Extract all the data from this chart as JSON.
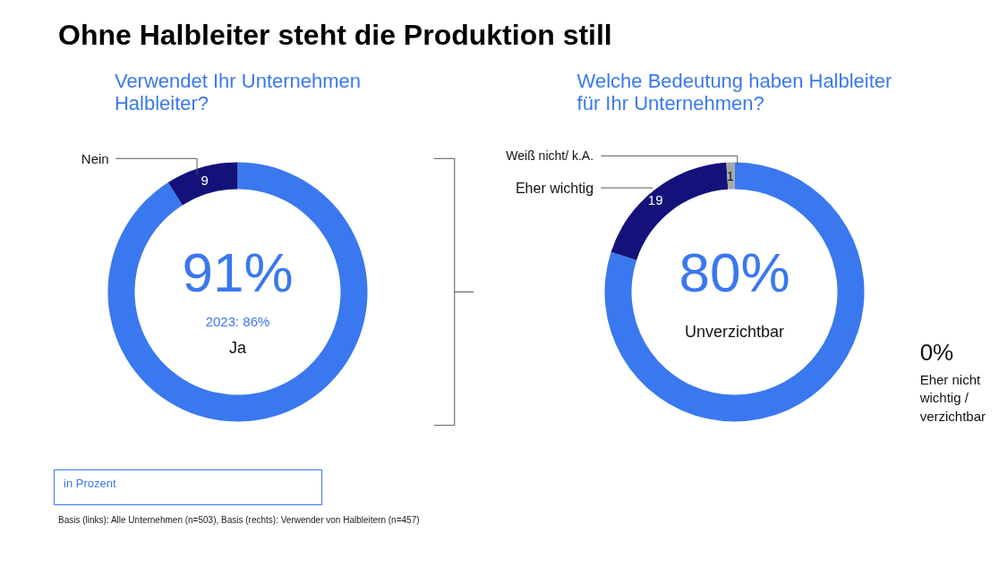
{
  "chart_data": [
    {
      "type": "donut",
      "title": "Ohne Halbleiter steht die Produktion still",
      "subtitle": "Verwendet Ihr Unternehmen\nHalbleiter?",
      "categories": [
        "Ja",
        "Nein"
      ],
      "values": [
        91,
        9
      ],
      "colors": [
        "#3a78ef",
        "#14127a"
      ],
      "value_labels": [
        "91%",
        "9"
      ],
      "annotations": [
        "2023: 86%",
        "in Prozent",
        "Basis (links): Alle Unternehmen (n=503), Basis (rechts): Verwender von Halbleitern (n=457)"
      ]
    },
    {
      "type": "donut",
      "title": "Welche Bedeutung haben Halbleiter\nfür Ihr Unternehmen?",
      "categories": [
        "Unverzichtbar",
        "Eher wichtig",
        "Weiß nicht/ k.A.",
        "Eher nicht wichtig / verzichtbar"
      ],
      "values": [
        80,
        19,
        1,
        0
      ],
      "colors": [
        "#3a78ef",
        "#14127a",
        "#a6a6a6",
        "#cccccc"
      ],
      "value_labels": [
        "80%",
        "19",
        "1",
        "0%"
      ]
    }
  ]
}
